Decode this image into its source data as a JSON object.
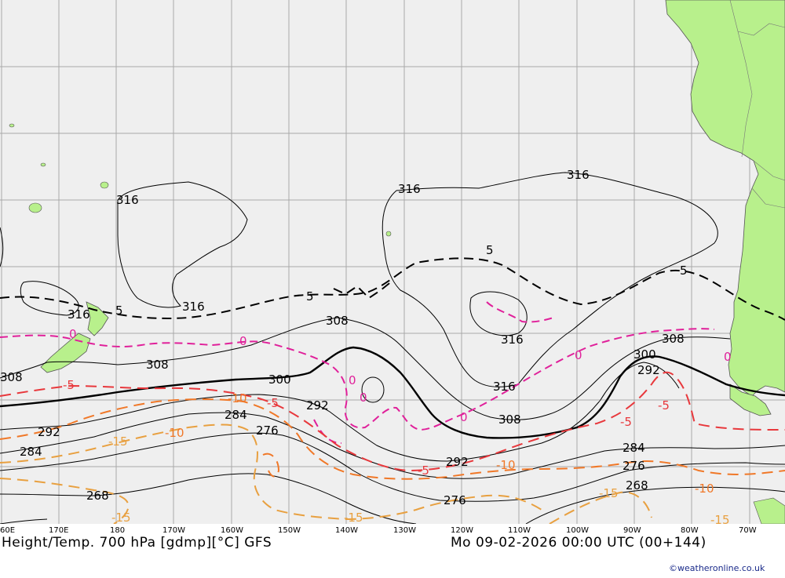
{
  "footer": {
    "left_title": "Height/Temp. 700 hPa [gdmp][°C] GFS",
    "right_time": "Mo 09-02-2026 00:00 UTC (00+144)",
    "credit": "©weatheronline.co.uk"
  },
  "longitude_ticks": [
    "60E",
    "170E",
    "180",
    "170W",
    "160W",
    "150W",
    "140W",
    "130W",
    "120W",
    "110W",
    "100W",
    "90W",
    "80W",
    "70W"
  ],
  "height_labels": [
    "316",
    "316",
    "316",
    "316",
    "316",
    "316",
    "316",
    "308",
    "308",
    "308",
    "308",
    "308",
    "300",
    "300",
    "292",
    "292",
    "292",
    "292",
    "284",
    "284",
    "284",
    "276",
    "276",
    "276",
    "268",
    "268"
  ],
  "temperature_labels": [
    "5",
    "5",
    "5",
    "5",
    "0",
    "0",
    "0",
    "0",
    "0",
    "0",
    "0",
    "-5",
    "-5",
    "-5",
    "-5",
    "-5",
    "-10",
    "-10",
    "-10",
    "-10",
    "-15",
    "-15",
    "-15",
    "-15",
    "-15"
  ],
  "colors": {
    "ocean": "#efefef",
    "land": "#b8f08c",
    "grid": "#a8a8a8",
    "height_contour": "#000000",
    "temp_positive": "#000000",
    "temp_zero": "#e0209a",
    "temp_minus5": "#e8383c",
    "temp_minus10": "#f07828",
    "temp_minus15": "#e8a040",
    "credit": "#1a2a8a"
  }
}
